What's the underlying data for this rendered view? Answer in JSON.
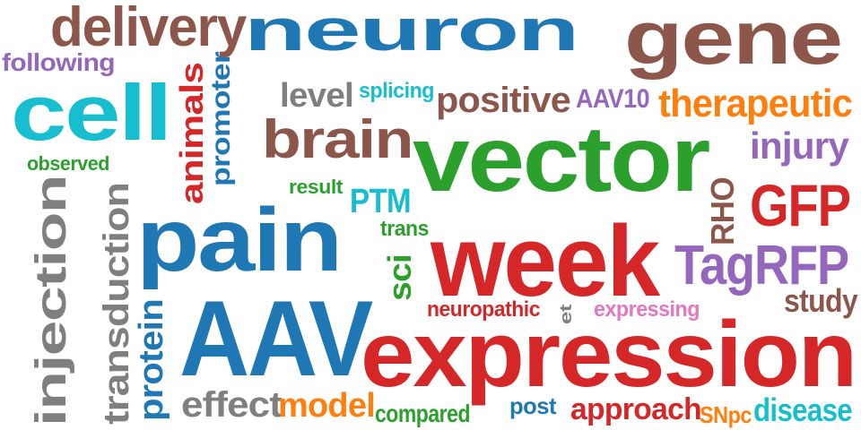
{
  "colors": {
    "blue": "#1f77b4",
    "brown": "#8c564b",
    "green": "#2ca02c",
    "red": "#d62728",
    "purple": "#9467bd",
    "orange": "#ff7f0e",
    "gray": "#7f7f7f",
    "cyan": "#17becf",
    "pink": "#e377c2"
  },
  "words": [
    {
      "text": "neuron",
      "color": "blue"
    },
    {
      "text": "gene",
      "color": "brown"
    },
    {
      "text": "delivery",
      "color": "brown"
    },
    {
      "text": "following",
      "color": "purple"
    },
    {
      "text": "cell",
      "color": "cyan"
    },
    {
      "text": "observed",
      "color": "green"
    },
    {
      "text": "animals",
      "color": "red"
    },
    {
      "text": "promoter",
      "color": "blue"
    },
    {
      "text": "level",
      "color": "gray"
    },
    {
      "text": "splicing",
      "color": "cyan"
    },
    {
      "text": "positive",
      "color": "brown"
    },
    {
      "text": "AAV10",
      "color": "purple"
    },
    {
      "text": "therapeutic",
      "color": "orange"
    },
    {
      "text": "brain",
      "color": "brown"
    },
    {
      "text": "vector",
      "color": "green"
    },
    {
      "text": "injury",
      "color": "purple"
    },
    {
      "text": "result",
      "color": "green"
    },
    {
      "text": "PTM",
      "color": "cyan"
    },
    {
      "text": "GFP",
      "color": "red"
    },
    {
      "text": "RHO",
      "color": "brown"
    },
    {
      "text": "injection",
      "color": "gray"
    },
    {
      "text": "transduction",
      "color": "gray"
    },
    {
      "text": "pain",
      "color": "blue"
    },
    {
      "text": "trans",
      "color": "green"
    },
    {
      "text": "week",
      "color": "red"
    },
    {
      "text": "TagRFP",
      "color": "purple"
    },
    {
      "text": "sci",
      "color": "green"
    },
    {
      "text": "study",
      "color": "brown"
    },
    {
      "text": "neuropathic",
      "color": "red"
    },
    {
      "text": "et",
      "color": "gray"
    },
    {
      "text": "expressing",
      "color": "pink"
    },
    {
      "text": "protein",
      "color": "blue"
    },
    {
      "text": "AAV",
      "color": "blue"
    },
    {
      "text": "expression",
      "color": "red"
    },
    {
      "text": "effect",
      "color": "gray"
    },
    {
      "text": "model",
      "color": "orange"
    },
    {
      "text": "compared",
      "color": "green"
    },
    {
      "text": "post",
      "color": "blue"
    },
    {
      "text": "approach",
      "color": "red"
    },
    {
      "text": "SNpc",
      "color": "orange"
    },
    {
      "text": "disease",
      "color": "cyan"
    }
  ]
}
